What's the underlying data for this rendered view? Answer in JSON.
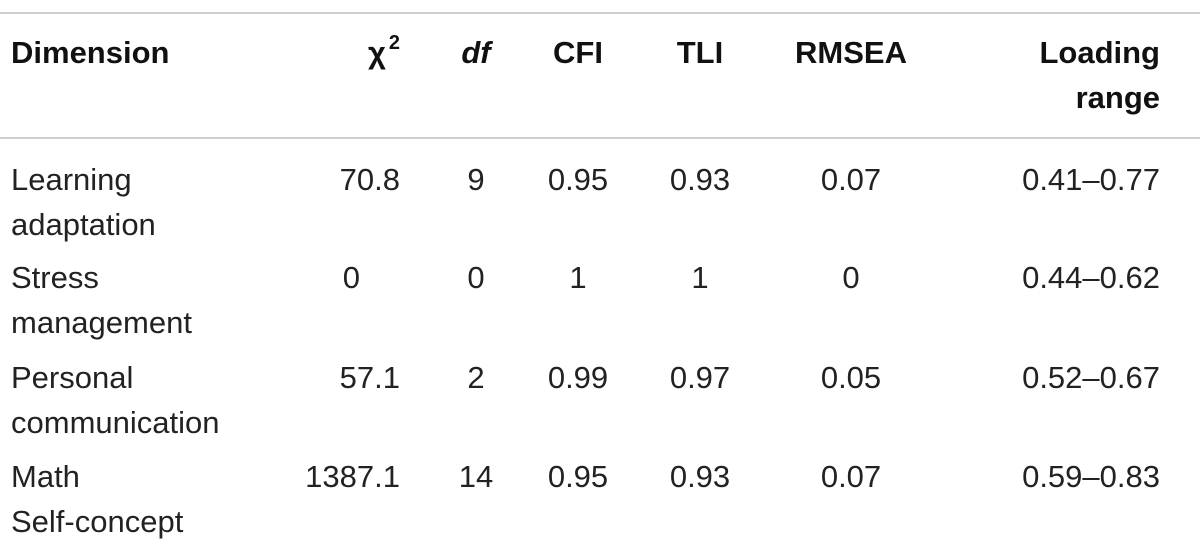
{
  "table": {
    "headers": {
      "dimension": "Dimension",
      "chi_symbol": "χ",
      "chi_superscript": "2",
      "df": "df",
      "cfi": "CFI",
      "tli": "TLI",
      "rmsea": "RMSEA",
      "loading_line1": "Loading",
      "loading_line2": "range"
    },
    "rows": [
      {
        "dimension_line1": "Learning",
        "dimension_line2": "adaptation",
        "chi2": "70.8",
        "df": "9",
        "cfi": "0.95",
        "tli": "0.93",
        "rmsea": "0.07",
        "loading_range": "0.41–0.77"
      },
      {
        "dimension_line1": "Stress",
        "dimension_line2": "management",
        "chi2": "0",
        "df": "0",
        "cfi": "1",
        "tli": "1",
        "rmsea": "0",
        "loading_range": "0.44–0.62"
      },
      {
        "dimension_line1": "Personal",
        "dimension_line2": "communication",
        "chi2": "57.1",
        "df": "2",
        "cfi": "0.99",
        "tli": "0.97",
        "rmsea": "0.05",
        "loading_range": "0.52–0.67"
      },
      {
        "dimension_line1": "Math",
        "dimension_line2": "Self-concept",
        "chi2": "1387.1",
        "df": "14",
        "cfi": "0.95",
        "tli": "0.93",
        "rmsea": "0.07",
        "loading_range": "0.59–0.83"
      }
    ]
  }
}
